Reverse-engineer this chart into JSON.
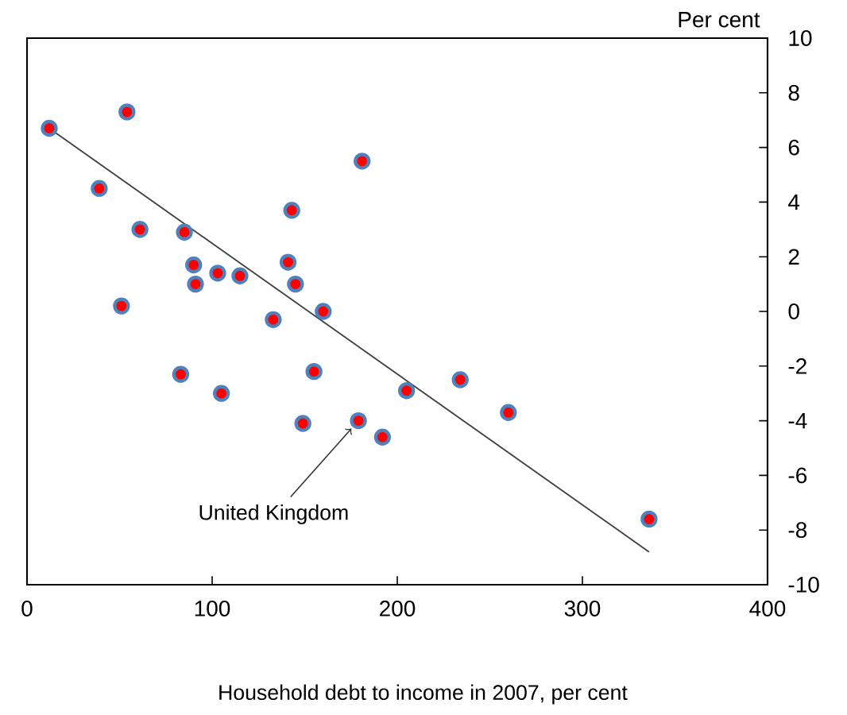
{
  "chart_data": {
    "type": "scatter",
    "xlabel": "Household debt to income in 2007, per cent",
    "ylabel": "Per cent",
    "xlim": [
      0,
      400
    ],
    "xticks": [
      0,
      100,
      200,
      300,
      400
    ],
    "ylim": [
      -10,
      10
    ],
    "yticks": [
      -10,
      -8,
      -6,
      -4,
      -2,
      0,
      2,
      4,
      6,
      8,
      10
    ],
    "grid": false,
    "annotations": [
      {
        "text": "United Kingdom",
        "x": 179,
        "y": -4.0
      }
    ],
    "series": [
      {
        "marker": "circle",
        "color": "#ff0000",
        "x": [
          12,
          54,
          39,
          61,
          85,
          143,
          181,
          90,
          91,
          103,
          115,
          141,
          145,
          160,
          133,
          51,
          83,
          105,
          155,
          205,
          234,
          260,
          149,
          179,
          192,
          336
        ],
        "values": [
          6.7,
          7.3,
          4.5,
          3.0,
          2.9,
          3.7,
          5.5,
          1.7,
          1.0,
          1.4,
          1.3,
          1.8,
          1.0,
          0.0,
          -0.3,
          0.2,
          -2.3,
          -3.0,
          -2.2,
          -2.9,
          -2.5,
          -3.7,
          -4.1,
          -4.0,
          -4.6,
          -7.6
        ]
      },
      {
        "type": "line",
        "marker": "none",
        "color": "#404040",
        "x": [
          12,
          336
        ],
        "values": [
          6.7,
          -8.8
        ]
      }
    ]
  }
}
